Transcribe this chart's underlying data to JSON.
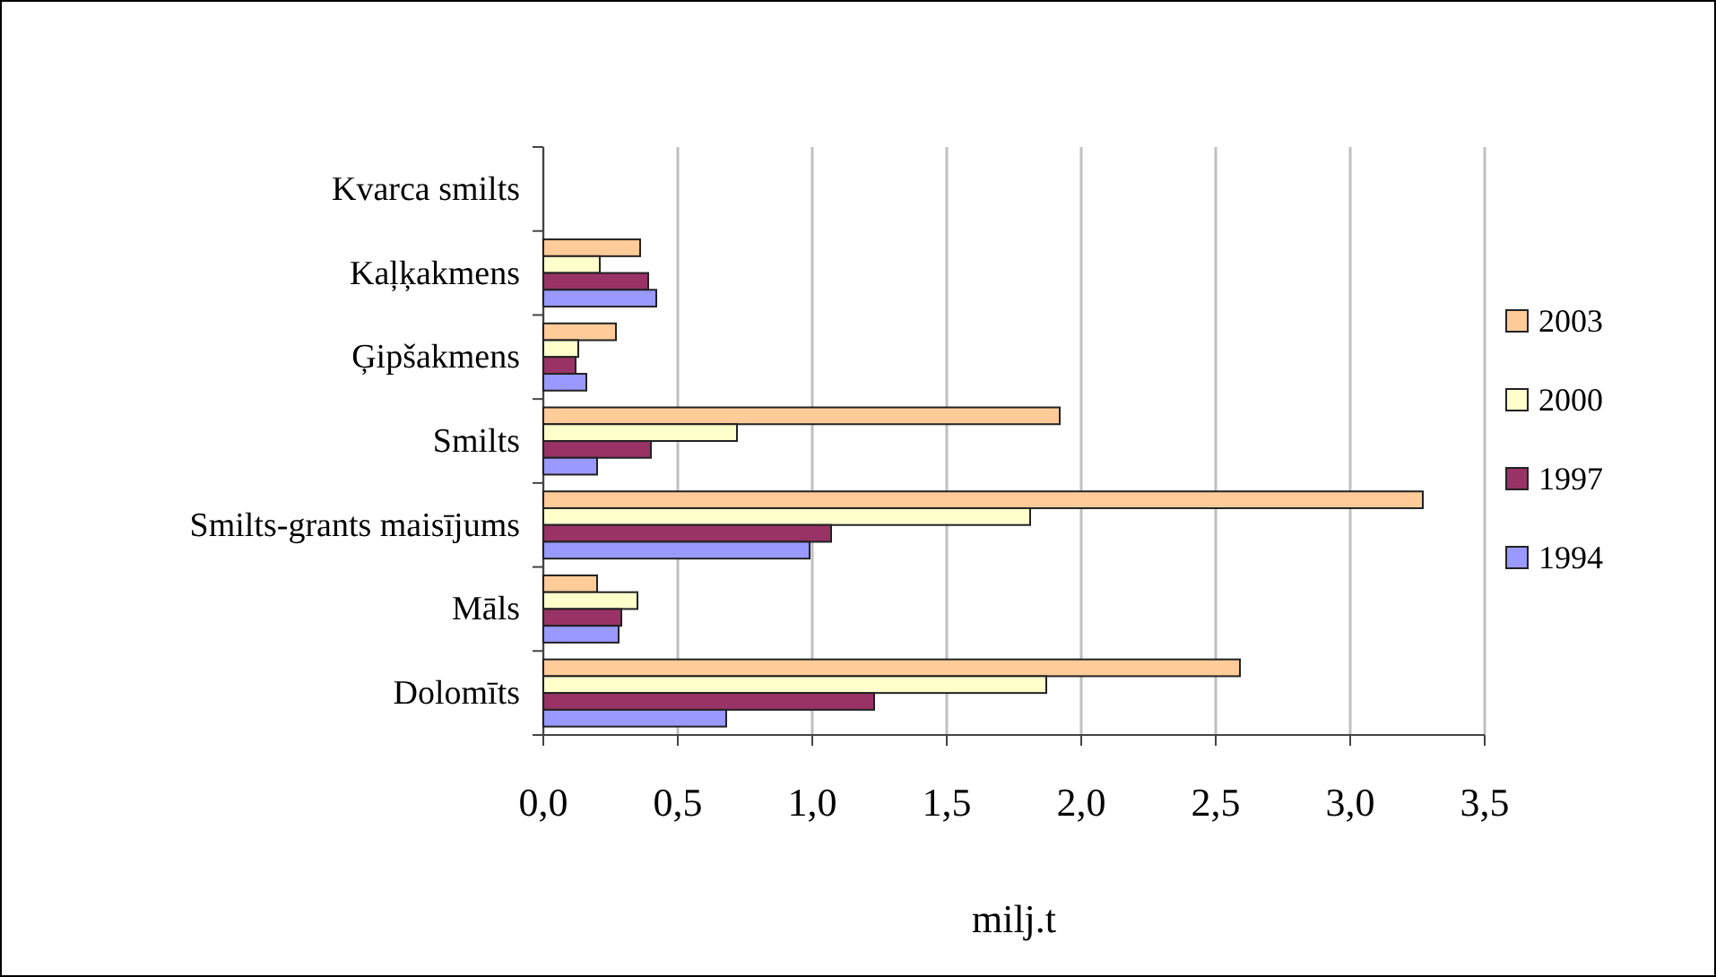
{
  "chart_data": {
    "type": "bar",
    "orientation": "horizontal",
    "xlabel": "milj.t",
    "categories": [
      "Kvarca smilts",
      "Kaļķakmens",
      "Ģipšakmens",
      "Smilts",
      "Smilts-grants maisījums",
      "Māls",
      "Dolomīts"
    ],
    "series": [
      {
        "name": "2003",
        "color": "#ffcc99",
        "values": [
          null,
          0.36,
          0.27,
          1.92,
          3.27,
          0.2,
          2.59
        ]
      },
      {
        "name": "2000",
        "color": "#ffffcc",
        "values": [
          null,
          0.21,
          0.13,
          0.72,
          1.81,
          0.35,
          1.87
        ]
      },
      {
        "name": "1997",
        "color": "#993366",
        "values": [
          null,
          0.39,
          0.12,
          0.4,
          1.07,
          0.29,
          1.23
        ]
      },
      {
        "name": "1994",
        "color": "#9999ff",
        "values": [
          null,
          0.42,
          0.16,
          0.2,
          0.99,
          0.28,
          0.68
        ]
      }
    ],
    "xlim": [
      0,
      3.5
    ],
    "xticks": [
      {
        "value": 0,
        "label": "0,0"
      },
      {
        "value": 0.5,
        "label": "0,5"
      },
      {
        "value": 1,
        "label": "1,0"
      },
      {
        "value": 1.5,
        "label": "1,5"
      },
      {
        "value": 2,
        "label": "2,0"
      },
      {
        "value": 2.5,
        "label": "2,5"
      },
      {
        "value": 3,
        "label": "3,0"
      },
      {
        "value": 3.5,
        "label": "3,5"
      }
    ],
    "grid": "x",
    "legend": "right"
  }
}
